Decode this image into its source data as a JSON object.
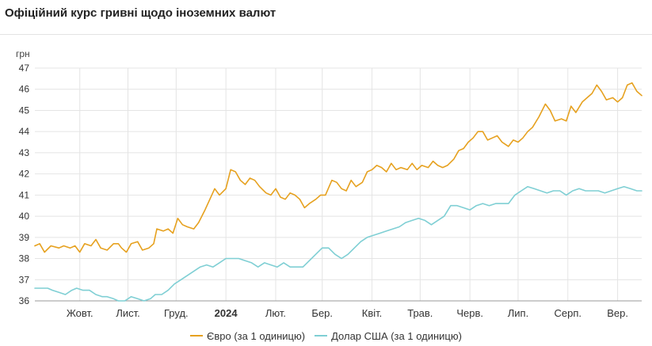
{
  "header": {
    "title": "Офіційний курс гривні щодо іноземних валют"
  },
  "chart_data": {
    "type": "line",
    "title": "Офіційний курс гривні щодо іноземних валют",
    "ylabel": "грн",
    "xlabel": "",
    "ylim": [
      36,
      47
    ],
    "yticks": [
      36,
      37,
      38,
      39,
      40,
      41,
      42,
      43,
      44,
      45,
      46,
      47
    ],
    "xlim": [
      "2023-09-18",
      "2024-09-30"
    ],
    "x_ticks": [
      {
        "date": "2023-10-16",
        "label": "Жовт."
      },
      {
        "date": "2023-11-15",
        "label": "Лист."
      },
      {
        "date": "2023-12-15",
        "label": "Груд."
      },
      {
        "date": "2024-01-15",
        "label": "2024",
        "bold": true
      },
      {
        "date": "2024-02-15",
        "label": "Лют."
      },
      {
        "date": "2024-03-15",
        "label": "Бер."
      },
      {
        "date": "2024-04-15",
        "label": "Квіт."
      },
      {
        "date": "2024-05-15",
        "label": "Трав."
      },
      {
        "date": "2024-06-15",
        "label": "Черв."
      },
      {
        "date": "2024-07-15",
        "label": "Лип."
      },
      {
        "date": "2024-08-15",
        "label": "Серп."
      },
      {
        "date": "2024-09-15",
        "label": "Вер."
      }
    ],
    "grid": true,
    "legend_position": "bottom",
    "series": [
      {
        "name": "Євро (за 1 одиницю)",
        "color": "#e6a11f",
        "points": [
          [
            "2023-09-18",
            38.6
          ],
          [
            "2023-09-21",
            38.7
          ],
          [
            "2023-09-24",
            38.3
          ],
          [
            "2023-09-28",
            38.6
          ],
          [
            "2023-10-03",
            38.5
          ],
          [
            "2023-10-06",
            38.6
          ],
          [
            "2023-10-10",
            38.5
          ],
          [
            "2023-10-13",
            38.6
          ],
          [
            "2023-10-16",
            38.3
          ],
          [
            "2023-10-19",
            38.7
          ],
          [
            "2023-10-23",
            38.6
          ],
          [
            "2023-10-26",
            38.9
          ],
          [
            "2023-10-29",
            38.5
          ],
          [
            "2023-11-02",
            38.4
          ],
          [
            "2023-11-06",
            38.7
          ],
          [
            "2023-11-09",
            38.7
          ],
          [
            "2023-11-11",
            38.5
          ],
          [
            "2023-11-14",
            38.3
          ],
          [
            "2023-11-17",
            38.7
          ],
          [
            "2023-11-21",
            38.8
          ],
          [
            "2023-11-24",
            38.4
          ],
          [
            "2023-11-28",
            38.5
          ],
          [
            "2023-12-01",
            38.7
          ],
          [
            "2023-12-03",
            39.4
          ],
          [
            "2023-12-07",
            39.3
          ],
          [
            "2023-12-10",
            39.4
          ],
          [
            "2023-12-13",
            39.2
          ],
          [
            "2023-12-16",
            39.9
          ],
          [
            "2023-12-19",
            39.6
          ],
          [
            "2023-12-22",
            39.5
          ],
          [
            "2023-12-26",
            39.4
          ],
          [
            "2023-12-29",
            39.7
          ],
          [
            "2024-01-02",
            40.3
          ],
          [
            "2024-01-05",
            40.8
          ],
          [
            "2024-01-08",
            41.3
          ],
          [
            "2024-01-11",
            41.0
          ],
          [
            "2024-01-15",
            41.3
          ],
          [
            "2024-01-18",
            42.2
          ],
          [
            "2024-01-21",
            42.1
          ],
          [
            "2024-01-24",
            41.7
          ],
          [
            "2024-01-27",
            41.5
          ],
          [
            "2024-01-30",
            41.8
          ],
          [
            "2024-02-02",
            41.7
          ],
          [
            "2024-02-05",
            41.4
          ],
          [
            "2024-02-09",
            41.1
          ],
          [
            "2024-02-12",
            41.0
          ],
          [
            "2024-02-15",
            41.3
          ],
          [
            "2024-02-18",
            40.9
          ],
          [
            "2024-02-21",
            40.8
          ],
          [
            "2024-02-24",
            41.1
          ],
          [
            "2024-02-27",
            41.0
          ],
          [
            "2024-03-01",
            40.8
          ],
          [
            "2024-03-04",
            40.4
          ],
          [
            "2024-03-07",
            40.6
          ],
          [
            "2024-03-11",
            40.8
          ],
          [
            "2024-03-14",
            41.0
          ],
          [
            "2024-03-17",
            41.0
          ],
          [
            "2024-03-21",
            41.7
          ],
          [
            "2024-03-24",
            41.6
          ],
          [
            "2024-03-27",
            41.3
          ],
          [
            "2024-03-30",
            41.2
          ],
          [
            "2024-04-02",
            41.7
          ],
          [
            "2024-04-05",
            41.4
          ],
          [
            "2024-04-09",
            41.6
          ],
          [
            "2024-04-12",
            42.1
          ],
          [
            "2024-04-15",
            42.2
          ],
          [
            "2024-04-18",
            42.4
          ],
          [
            "2024-04-21",
            42.3
          ],
          [
            "2024-04-24",
            42.1
          ],
          [
            "2024-04-27",
            42.5
          ],
          [
            "2024-04-30",
            42.2
          ],
          [
            "2024-05-03",
            42.3
          ],
          [
            "2024-05-07",
            42.2
          ],
          [
            "2024-05-10",
            42.5
          ],
          [
            "2024-05-13",
            42.2
          ],
          [
            "2024-05-16",
            42.4
          ],
          [
            "2024-05-20",
            42.3
          ],
          [
            "2024-05-23",
            42.6
          ],
          [
            "2024-05-26",
            42.4
          ],
          [
            "2024-05-29",
            42.3
          ],
          [
            "2024-06-01",
            42.4
          ],
          [
            "2024-06-05",
            42.7
          ],
          [
            "2024-06-08",
            43.1
          ],
          [
            "2024-06-11",
            43.2
          ],
          [
            "2024-06-14",
            43.5
          ],
          [
            "2024-06-17",
            43.7
          ],
          [
            "2024-06-20",
            44.0
          ],
          [
            "2024-06-23",
            44.0
          ],
          [
            "2024-06-26",
            43.6
          ],
          [
            "2024-06-29",
            43.7
          ],
          [
            "2024-07-02",
            43.8
          ],
          [
            "2024-07-05",
            43.5
          ],
          [
            "2024-07-09",
            43.3
          ],
          [
            "2024-07-12",
            43.6
          ],
          [
            "2024-07-15",
            43.5
          ],
          [
            "2024-07-18",
            43.7
          ],
          [
            "2024-07-21",
            44.0
          ],
          [
            "2024-07-24",
            44.2
          ],
          [
            "2024-07-28",
            44.7
          ],
          [
            "2024-08-01",
            45.3
          ],
          [
            "2024-08-04",
            45.0
          ],
          [
            "2024-08-07",
            44.5
          ],
          [
            "2024-08-11",
            44.6
          ],
          [
            "2024-08-14",
            44.5
          ],
          [
            "2024-08-17",
            45.2
          ],
          [
            "2024-08-20",
            44.9
          ],
          [
            "2024-08-24",
            45.4
          ],
          [
            "2024-08-27",
            45.6
          ],
          [
            "2024-08-30",
            45.8
          ],
          [
            "2024-09-02",
            46.2
          ],
          [
            "2024-09-05",
            45.9
          ],
          [
            "2024-09-08",
            45.5
          ],
          [
            "2024-09-12",
            45.6
          ],
          [
            "2024-09-15",
            45.4
          ],
          [
            "2024-09-18",
            45.6
          ],
          [
            "2024-09-21",
            46.2
          ],
          [
            "2024-09-24",
            46.3
          ],
          [
            "2024-09-27",
            45.9
          ],
          [
            "2024-09-30",
            45.7
          ]
        ]
      },
      {
        "name": "Долар США (за 1 одиницю)",
        "color": "#7fcfd4",
        "points": [
          [
            "2023-09-18",
            36.6
          ],
          [
            "2023-09-22",
            36.6
          ],
          [
            "2023-09-26",
            36.6
          ],
          [
            "2023-09-29",
            36.5
          ],
          [
            "2023-10-03",
            36.4
          ],
          [
            "2023-10-07",
            36.3
          ],
          [
            "2023-10-11",
            36.5
          ],
          [
            "2023-10-14",
            36.6
          ],
          [
            "2023-10-18",
            36.5
          ],
          [
            "2023-10-22",
            36.5
          ],
          [
            "2023-10-26",
            36.3
          ],
          [
            "2023-10-30",
            36.2
          ],
          [
            "2023-11-02",
            36.2
          ],
          [
            "2023-11-06",
            36.1
          ],
          [
            "2023-11-09",
            36.0
          ],
          [
            "2023-11-13",
            36.0
          ],
          [
            "2023-11-17",
            36.2
          ],
          [
            "2023-11-21",
            36.1
          ],
          [
            "2023-11-25",
            36.0
          ],
          [
            "2023-11-29",
            36.1
          ],
          [
            "2023-12-02",
            36.3
          ],
          [
            "2023-12-06",
            36.3
          ],
          [
            "2023-12-10",
            36.5
          ],
          [
            "2023-12-14",
            36.8
          ],
          [
            "2023-12-18",
            37.0
          ],
          [
            "2023-12-22",
            37.2
          ],
          [
            "2023-12-26",
            37.4
          ],
          [
            "2023-12-30",
            37.6
          ],
          [
            "2024-01-03",
            37.7
          ],
          [
            "2024-01-07",
            37.6
          ],
          [
            "2024-01-11",
            37.8
          ],
          [
            "2024-01-15",
            38.0
          ],
          [
            "2024-01-19",
            38.0
          ],
          [
            "2024-01-23",
            38.0
          ],
          [
            "2024-01-27",
            37.9
          ],
          [
            "2024-01-31",
            37.8
          ],
          [
            "2024-02-04",
            37.6
          ],
          [
            "2024-02-08",
            37.8
          ],
          [
            "2024-02-12",
            37.7
          ],
          [
            "2024-02-16",
            37.6
          ],
          [
            "2024-02-20",
            37.8
          ],
          [
            "2024-02-24",
            37.6
          ],
          [
            "2024-02-28",
            37.6
          ],
          [
            "2024-03-03",
            37.6
          ],
          [
            "2024-03-07",
            37.9
          ],
          [
            "2024-03-11",
            38.2
          ],
          [
            "2024-03-15",
            38.5
          ],
          [
            "2024-03-19",
            38.5
          ],
          [
            "2024-03-23",
            38.2
          ],
          [
            "2024-03-27",
            38.0
          ],
          [
            "2024-03-31",
            38.2
          ],
          [
            "2024-04-04",
            38.5
          ],
          [
            "2024-04-08",
            38.8
          ],
          [
            "2024-04-12",
            39.0
          ],
          [
            "2024-04-16",
            39.1
          ],
          [
            "2024-04-20",
            39.2
          ],
          [
            "2024-04-24",
            39.3
          ],
          [
            "2024-04-28",
            39.4
          ],
          [
            "2024-05-02",
            39.5
          ],
          [
            "2024-05-06",
            39.7
          ],
          [
            "2024-05-10",
            39.8
          ],
          [
            "2024-05-14",
            39.9
          ],
          [
            "2024-05-18",
            39.8
          ],
          [
            "2024-05-22",
            39.6
          ],
          [
            "2024-05-26",
            39.8
          ],
          [
            "2024-05-30",
            40.0
          ],
          [
            "2024-06-03",
            40.5
          ],
          [
            "2024-06-07",
            40.5
          ],
          [
            "2024-06-11",
            40.4
          ],
          [
            "2024-06-15",
            40.3
          ],
          [
            "2024-06-19",
            40.5
          ],
          [
            "2024-06-23",
            40.6
          ],
          [
            "2024-06-27",
            40.5
          ],
          [
            "2024-07-01",
            40.6
          ],
          [
            "2024-07-05",
            40.6
          ],
          [
            "2024-07-09",
            40.6
          ],
          [
            "2024-07-13",
            41.0
          ],
          [
            "2024-07-17",
            41.2
          ],
          [
            "2024-07-21",
            41.4
          ],
          [
            "2024-07-25",
            41.3
          ],
          [
            "2024-07-29",
            41.2
          ],
          [
            "2024-08-02",
            41.1
          ],
          [
            "2024-08-06",
            41.2
          ],
          [
            "2024-08-10",
            41.2
          ],
          [
            "2024-08-14",
            41.0
          ],
          [
            "2024-08-18",
            41.2
          ],
          [
            "2024-08-22",
            41.3
          ],
          [
            "2024-08-26",
            41.2
          ],
          [
            "2024-08-30",
            41.2
          ],
          [
            "2024-09-03",
            41.2
          ],
          [
            "2024-09-07",
            41.1
          ],
          [
            "2024-09-11",
            41.2
          ],
          [
            "2024-09-15",
            41.3
          ],
          [
            "2024-09-19",
            41.4
          ],
          [
            "2024-09-23",
            41.3
          ],
          [
            "2024-09-27",
            41.2
          ],
          [
            "2024-09-30",
            41.2
          ]
        ]
      }
    ]
  }
}
